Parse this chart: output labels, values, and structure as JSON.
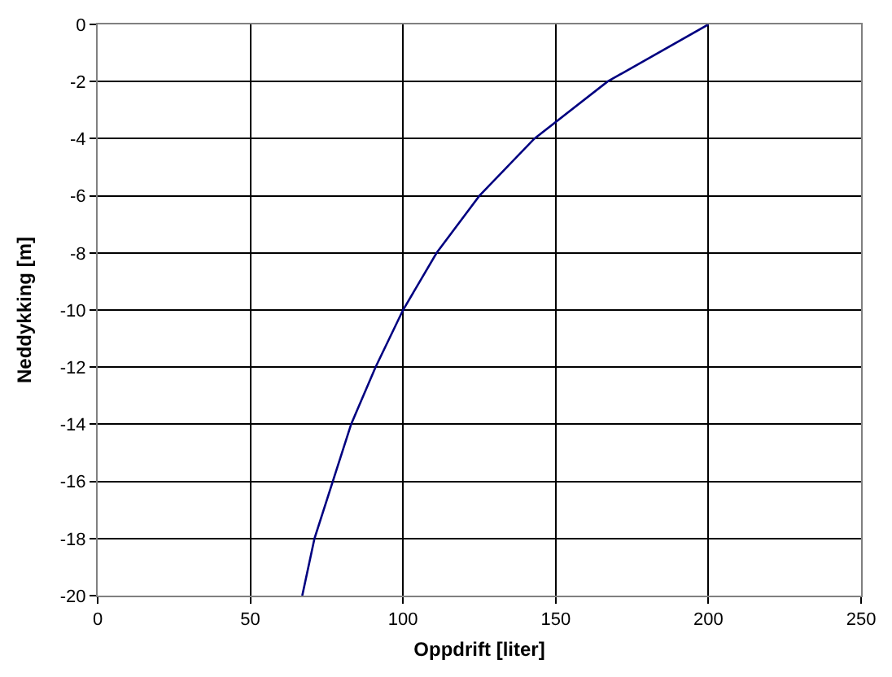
{
  "chart_data": {
    "type": "line",
    "xlabel": "Oppdrift [liter]",
    "ylabel": "Neddykking [m]",
    "x": [
      200,
      167,
      143,
      125,
      111,
      100,
      91,
      83,
      77,
      71,
      67
    ],
    "series": [
      {
        "color": "#000080",
        "values": [
          0,
          -2,
          -4,
          -6,
          -8,
          -10,
          -12,
          -14,
          -16,
          -18,
          -20
        ]
      }
    ],
    "xlim": [
      0,
      250
    ],
    "xticks": [
      0,
      50,
      100,
      150,
      200,
      250
    ],
    "ylim": [
      -20,
      0
    ],
    "yticks": [
      -20,
      -18,
      -16,
      -14,
      -12,
      -10,
      -8,
      -6,
      -4,
      -2,
      0
    ],
    "grid": true,
    "line_style": "solid"
  }
}
